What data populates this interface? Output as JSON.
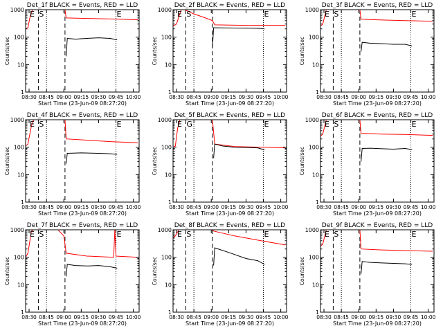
{
  "figure": {
    "background": "#ffffff",
    "axis_color": "#000000",
    "events_color": "#000000",
    "lld_color": "#ff0000"
  },
  "chart_data": [
    {
      "type": "line",
      "title": "Det_1f BLACK = Events, RED = LLD",
      "xlabel": "Start Time (23-Jun-09 08:27:20)",
      "ylabel": "Counts/sec",
      "xlim": [
        "08:27",
        "10:05"
      ],
      "ylim": [
        1,
        1000
      ],
      "yscale": "log",
      "xticks": [
        "08:30",
        "08:45",
        "09:00",
        "09:15",
        "09:30",
        "09:45",
        "10:00"
      ],
      "yticks": [
        "1",
        "10",
        "100",
        "1000"
      ],
      "markers": [
        {
          "label": "E",
          "time": "08:30"
        },
        {
          "label": "S",
          "time": "08:38"
        },
        {
          "label": "E",
          "time": "09:45"
        }
      ],
      "dashed_lines": [
        "08:38",
        "09:01"
      ],
      "dotted_lines": [
        "08:45",
        "09:45"
      ],
      "series": [
        {
          "name": "LLD",
          "x": [
            "08:27",
            "08:29",
            "08:31",
            "08:33",
            "08:35",
            "09:01",
            "09:02",
            "09:20",
            "09:40",
            "10:04"
          ],
          "y": [
            200,
            220,
            600,
            1000,
            1000,
            1000,
            500,
            480,
            460,
            430
          ]
        },
        {
          "name": "Events",
          "x": [
            "09:02",
            "09:03",
            "09:10",
            "09:20",
            "09:30",
            "09:40",
            "09:46"
          ],
          "y": [
            20,
            90,
            85,
            90,
            95,
            90,
            80
          ]
        }
      ]
    },
    {
      "type": "line",
      "title": "Det_2f BLACK = Events, RED = LLD",
      "xlabel": "Start Time (23-Jun-09 08:27:20)",
      "ylabel": "Counts/sec",
      "xlim": [
        "08:27",
        "10:05"
      ],
      "ylim": [
        1,
        1000
      ],
      "yscale": "log",
      "xticks": [
        "08:30",
        "08:45",
        "09:00",
        "09:15",
        "09:30",
        "09:45",
        "10:00"
      ],
      "yticks": [
        "1",
        "10",
        "100",
        "1000"
      ],
      "markers": [
        {
          "label": "E",
          "time": "08:30"
        },
        {
          "label": "S",
          "time": "08:38"
        },
        {
          "label": "E",
          "time": "09:45"
        }
      ],
      "dashed_lines": [
        "08:38",
        "09:01"
      ],
      "dotted_lines": [
        "08:45",
        "09:45"
      ],
      "series": [
        {
          "name": "LLD",
          "x": [
            "08:27",
            "08:30",
            "08:34",
            "08:37",
            "08:45",
            "08:55",
            "09:01",
            "09:03",
            "09:30",
            "10:04"
          ],
          "y": [
            250,
            300,
            1000,
            1000,
            700,
            500,
            400,
            280,
            270,
            270
          ]
        },
        {
          "name": "Events",
          "x": [
            "09:01",
            "09:02",
            "09:20",
            "09:40",
            "09:46"
          ],
          "y": [
            40,
            220,
            215,
            210,
            200
          ]
        }
      ]
    },
    {
      "type": "line",
      "title": "Det_3f BLACK = Events, RED = LLD",
      "xlabel": "Start Time (23-Jun-09 08:27:20)",
      "ylabel": "Counts/sec",
      "xlim": [
        "08:27",
        "10:05"
      ],
      "ylim": [
        1,
        1000
      ],
      "yscale": "log",
      "xticks": [
        "08:30",
        "08:45",
        "09:00",
        "09:15",
        "09:30",
        "09:45",
        "10:00"
      ],
      "yticks": [
        "1",
        "10",
        "100",
        "1000"
      ],
      "markers": [
        {
          "label": "E",
          "time": "08:30"
        },
        {
          "label": "S",
          "time": "08:38"
        },
        {
          "label": "E",
          "time": "09:45"
        }
      ],
      "dashed_lines": [
        "08:38",
        "09:01"
      ],
      "dotted_lines": [
        "08:45",
        "09:45"
      ],
      "series": [
        {
          "name": "LLD",
          "x": [
            "08:27",
            "08:29",
            "08:32",
            "08:34",
            "09:01",
            "09:02",
            "09:20",
            "09:40",
            "10:04"
          ],
          "y": [
            250,
            300,
            1000,
            1000,
            1000,
            450,
            420,
            400,
            380
          ]
        },
        {
          "name": "Events",
          "x": [
            "09:02",
            "09:03",
            "09:10",
            "09:20",
            "09:30",
            "09:40",
            "09:46"
          ],
          "y": [
            30,
            65,
            60,
            58,
            55,
            55,
            48
          ]
        }
      ]
    },
    {
      "type": "line",
      "title": "Det_4f BLACK = Events, RED = LLD",
      "xlabel": "Start Time (23-Jun-09 08:27:20)",
      "ylabel": "Counts/sec",
      "xlim": [
        "08:27",
        "10:05"
      ],
      "ylim": [
        1,
        1000
      ],
      "yscale": "log",
      "xticks": [
        "08:30",
        "08:45",
        "09:00",
        "09:15",
        "09:30",
        "09:45",
        "10:00"
      ],
      "yticks": [
        "1",
        "10",
        "100",
        "1000"
      ],
      "markers": [
        {
          "label": "E",
          "time": "08:30"
        },
        {
          "label": "S",
          "time": "08:38"
        },
        {
          "label": "E",
          "time": "09:45"
        }
      ],
      "dashed_lines": [
        "08:38",
        "09:01"
      ],
      "dotted_lines": [
        "08:45",
        "09:45"
      ],
      "series": [
        {
          "name": "LLD",
          "x": [
            "08:27",
            "08:29",
            "08:32",
            "08:34",
            "09:01",
            "09:02",
            "09:20",
            "09:40",
            "10:04"
          ],
          "y": [
            110,
            130,
            600,
            1000,
            1000,
            200,
            180,
            160,
            145
          ]
        },
        {
          "name": "Events",
          "x": [
            "09:02",
            "09:03",
            "09:15",
            "09:30",
            "09:40",
            "09:46"
          ],
          "y": [
            25,
            60,
            62,
            60,
            58,
            55
          ]
        }
      ]
    },
    {
      "type": "line",
      "title": "Det_5f BLACK = Events, RED = LLD",
      "xlabel": "Start Time (23-Jun-09 08:27:20)",
      "ylabel": "Counts/sec",
      "xlim": [
        "08:27",
        "10:05"
      ],
      "ylim": [
        1,
        1000
      ],
      "yscale": "log",
      "xticks": [
        "08:30",
        "08:45",
        "09:00",
        "09:15",
        "09:30",
        "09:45",
        "10:00"
      ],
      "yticks": [
        "1",
        "10",
        "100",
        "1000"
      ],
      "markers": [
        {
          "label": "E",
          "time": "08:30"
        },
        {
          "label": "G",
          "time": "08:38"
        },
        {
          "label": "E",
          "time": "09:45"
        }
      ],
      "dashed_lines": [
        "08:38",
        "09:01"
      ],
      "dotted_lines": [
        "08:45",
        "09:45"
      ],
      "series": [
        {
          "name": "LLD",
          "x": [
            "08:27",
            "08:29",
            "08:31",
            "08:33",
            "09:01",
            "09:03",
            "09:20",
            "09:45",
            "10:04"
          ],
          "y": [
            100,
            110,
            500,
            1000,
            1000,
            130,
            105,
            100,
            95
          ]
        },
        {
          "name": "Events",
          "x": [
            "09:02",
            "09:03",
            "09:10",
            "09:20",
            "09:30",
            "09:40",
            "09:46"
          ],
          "y": [
            40,
            130,
            110,
            100,
            98,
            95,
            80
          ]
        }
      ]
    },
    {
      "type": "line",
      "title": "Det_6f BLACK = Events, RED = LLD",
      "xlabel": "Start Time (23-Jun-09 08:27:20)",
      "ylabel": "Counts/sec",
      "xlim": [
        "08:27",
        "10:05"
      ],
      "ylim": [
        1,
        1000
      ],
      "yscale": "log",
      "xticks": [
        "08:30",
        "08:45",
        "09:00",
        "09:15",
        "09:30",
        "09:45",
        "10:00"
      ],
      "yticks": [
        "1",
        "10",
        "100",
        "1000"
      ],
      "markers": [
        {
          "label": "E",
          "time": "08:30"
        },
        {
          "label": "S",
          "time": "08:38"
        },
        {
          "label": "E",
          "time": "09:45"
        }
      ],
      "dashed_lines": [
        "08:38",
        "09:01"
      ],
      "dotted_lines": [
        "08:45",
        "09:45"
      ],
      "series": [
        {
          "name": "LLD",
          "x": [
            "08:27",
            "08:29",
            "08:32",
            "08:34",
            "09:01",
            "09:02",
            "09:20",
            "09:40",
            "10:04"
          ],
          "y": [
            250,
            300,
            1000,
            1000,
            1000,
            320,
            300,
            290,
            270
          ]
        },
        {
          "name": "Events",
          "x": [
            "09:02",
            "09:03",
            "09:10",
            "09:20",
            "09:30",
            "09:40",
            "09:46"
          ],
          "y": [
            30,
            90,
            92,
            88,
            85,
            90,
            82
          ]
        }
      ]
    },
    {
      "type": "line",
      "title": "Det_7f BLACK = Events, RED = LLD",
      "xlabel": "Start Time (23-Jun-09 08:27:20)",
      "ylabel": "Counts/sec",
      "xlim": [
        "08:27",
        "10:05"
      ],
      "ylim": [
        1,
        1000
      ],
      "yscale": "log",
      "xticks": [
        "08:30",
        "08:45",
        "09:00",
        "09:15",
        "09:30",
        "09:45",
        "10:00"
      ],
      "yticks": [
        "1",
        "10",
        "100",
        "1000"
      ],
      "markers": [
        {
          "label": "E",
          "time": "08:30"
        },
        {
          "label": "S",
          "time": "08:38"
        },
        {
          "label": "E",
          "time": "09:45"
        }
      ],
      "dashed_lines": [
        "08:38",
        "09:01"
      ],
      "dotted_lines": [
        "08:45",
        "09:45"
      ],
      "series": [
        {
          "name": "LLD",
          "x": [
            "08:27",
            "08:29",
            "08:32",
            "08:34",
            "08:55",
            "09:00",
            "09:01",
            "09:02",
            "09:20",
            "09:43",
            "09:44",
            "09:45",
            "10:04"
          ],
          "y": [
            100,
            140,
            900,
            1000,
            1000,
            600,
            300,
            140,
            110,
            100,
            1000,
            110,
            100
          ]
        },
        {
          "name": "Events",
          "x": [
            "09:02",
            "09:03",
            "09:10",
            "09:20",
            "09:30",
            "09:40",
            "09:46"
          ],
          "y": [
            20,
            55,
            50,
            48,
            50,
            45,
            40
          ]
        }
      ]
    },
    {
      "type": "line",
      "title": "Det_8f BLACK = Events, RED = LLD",
      "xlabel": "Start Time (23-Jun-09 08:27:20)",
      "ylabel": "Counts/sec",
      "xlim": [
        "08:27",
        "10:05"
      ],
      "ylim": [
        1,
        1000
      ],
      "yscale": "log",
      "xticks": [
        "08:30",
        "08:45",
        "09:00",
        "09:15",
        "09:30",
        "09:45",
        "10:00"
      ],
      "yticks": [
        "1",
        "10",
        "100",
        "1000"
      ],
      "markers": [
        {
          "label": "E",
          "time": "08:30"
        },
        {
          "label": "S",
          "time": "08:38"
        },
        {
          "label": "E",
          "time": "09:45"
        }
      ],
      "dashed_lines": [
        "08:38",
        "09:01"
      ],
      "dotted_lines": [
        "08:45",
        "09:45"
      ],
      "series": [
        {
          "name": "LLD",
          "x": [
            "08:27",
            "08:29",
            "08:32",
            "08:34",
            "09:01",
            "09:02",
            "09:20",
            "09:40",
            "10:04"
          ],
          "y": [
            500,
            600,
            1000,
            1000,
            1000,
            900,
            600,
            420,
            280
          ]
        },
        {
          "name": "Events",
          "x": [
            "09:02",
            "09:03",
            "09:15",
            "09:30",
            "09:40",
            "09:46"
          ],
          "y": [
            50,
            220,
            150,
            90,
            75,
            55
          ]
        }
      ]
    },
    {
      "type": "line",
      "title": "Det_9f BLACK = Events, RED = LLD",
      "xlabel": "Start Time (23-Jun-09 08:27:20)",
      "ylabel": "Counts/sec",
      "xlim": [
        "08:27",
        "10:05"
      ],
      "ylim": [
        1,
        1000
      ],
      "yscale": "log",
      "xticks": [
        "08:30",
        "08:45",
        "09:00",
        "09:15",
        "09:30",
        "09:45",
        "10:00"
      ],
      "yticks": [
        "1",
        "10",
        "100",
        "1000"
      ],
      "markers": [
        {
          "label": "E",
          "time": "08:30"
        },
        {
          "label": "S",
          "time": "08:38"
        },
        {
          "label": "E",
          "time": "09:45"
        }
      ],
      "dashed_lines": [
        "08:38",
        "09:01"
      ],
      "dotted_lines": [
        "08:45",
        "09:45"
      ],
      "series": [
        {
          "name": "LLD",
          "x": [
            "08:27",
            "08:29",
            "08:32",
            "08:34",
            "09:01",
            "09:02",
            "09:20",
            "09:40",
            "10:04"
          ],
          "y": [
            250,
            300,
            1000,
            1000,
            1000,
            200,
            185,
            175,
            165
          ]
        },
        {
          "name": "Events",
          "x": [
            "09:02",
            "09:03",
            "09:10",
            "09:20",
            "09:30",
            "09:40",
            "09:46"
          ],
          "y": [
            25,
            70,
            65,
            62,
            60,
            58,
            55
          ]
        }
      ]
    }
  ]
}
